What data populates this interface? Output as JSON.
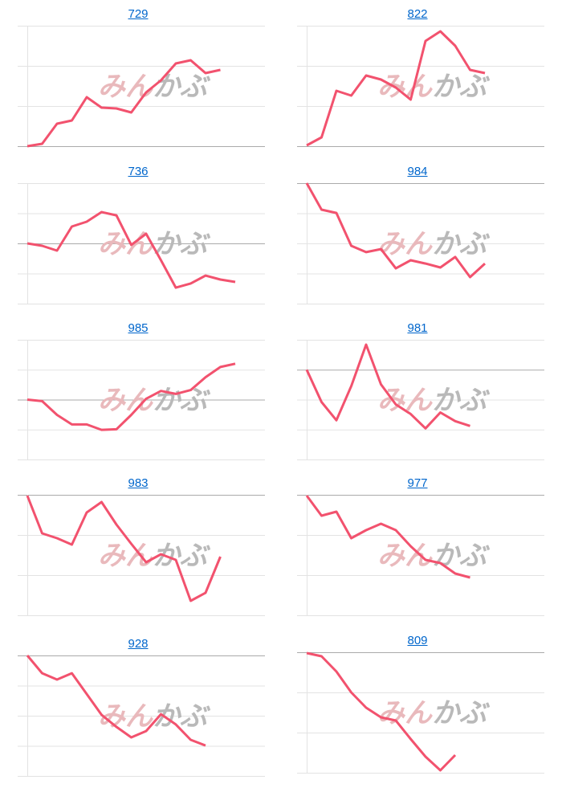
{
  "watermark": {
    "part1": "みん",
    "part2": "かぶ",
    "color1": "#e9b9bc",
    "color2": "#b9b9b9"
  },
  "line_color": "#f2526e",
  "chart_data": [
    {
      "type": "line",
      "title": "729",
      "ylim": [
        0,
        3
      ],
      "baseline": 0,
      "values": [
        0,
        0.06,
        0.56,
        0.64,
        1.22,
        0.96,
        0.94,
        0.84,
        1.34,
        1.64,
        2.06,
        2.14,
        1.82,
        1.9
      ]
    },
    {
      "type": "line",
      "title": "822",
      "ylim": [
        0,
        3
      ],
      "baseline": 0,
      "values": [
        0.02,
        0.22,
        1.38,
        1.26,
        1.76,
        1.66,
        1.46,
        1.16,
        2.62,
        2.86,
        2.5,
        1.9,
        1.82
      ]
    },
    {
      "type": "line",
      "title": "736",
      "ylim": [
        0,
        4
      ],
      "baseline": 2,
      "values": [
        2.0,
        1.92,
        1.76,
        2.56,
        2.72,
        3.04,
        2.93,
        1.95,
        2.32,
        1.44,
        0.53,
        0.67,
        0.93,
        0.8,
        0.72
      ]
    },
    {
      "type": "line",
      "title": "984",
      "ylim": [
        0,
        4
      ],
      "baseline": 4,
      "values": [
        4.0,
        3.12,
        3.01,
        1.92,
        1.71,
        1.81,
        1.17,
        1.44,
        1.33,
        1.2,
        1.55,
        0.88,
        1.33
      ]
    },
    {
      "type": "line",
      "title": "985",
      "ylim": [
        0,
        4
      ],
      "baseline": 2,
      "values": [
        2.0,
        1.95,
        1.49,
        1.17,
        1.17,
        0.99,
        1.01,
        1.49,
        2.03,
        2.29,
        2.19,
        2.32,
        2.75,
        3.09,
        3.2
      ]
    },
    {
      "type": "line",
      "title": "981",
      "ylim": [
        0,
        4
      ],
      "baseline": 3,
      "values": [
        3.0,
        1.92,
        1.31,
        2.45,
        3.84,
        2.51,
        1.84,
        1.52,
        1.04,
        1.57,
        1.28,
        1.12
      ]
    },
    {
      "type": "line",
      "title": "983",
      "ylim": [
        0,
        3
      ],
      "baseline": 3,
      "values": [
        2.98,
        2.04,
        1.92,
        1.76,
        2.56,
        2.82,
        2.26,
        1.78,
        1.32,
        1.52,
        1.38,
        0.36,
        0.56,
        1.46
      ]
    },
    {
      "type": "line",
      "title": "977",
      "ylim": [
        0,
        3
      ],
      "baseline": 3,
      "values": [
        2.98,
        2.48,
        2.58,
        1.92,
        2.12,
        2.28,
        2.12,
        1.72,
        1.38,
        1.3,
        1.04,
        0.94
      ]
    },
    {
      "type": "line",
      "title": "928",
      "ylim": [
        0,
        4
      ],
      "baseline": 4,
      "values": [
        4.0,
        3.41,
        3.2,
        3.41,
        2.72,
        2.03,
        1.63,
        1.28,
        1.49,
        2.05,
        1.71,
        1.2,
        1.01
      ]
    },
    {
      "type": "line",
      "title": "809",
      "ylim": [
        0,
        3
      ],
      "baseline": 3,
      "values": [
        2.98,
        2.9,
        2.52,
        2.0,
        1.62,
        1.38,
        1.3,
        0.84,
        0.4,
        0.06,
        0.44
      ]
    }
  ]
}
